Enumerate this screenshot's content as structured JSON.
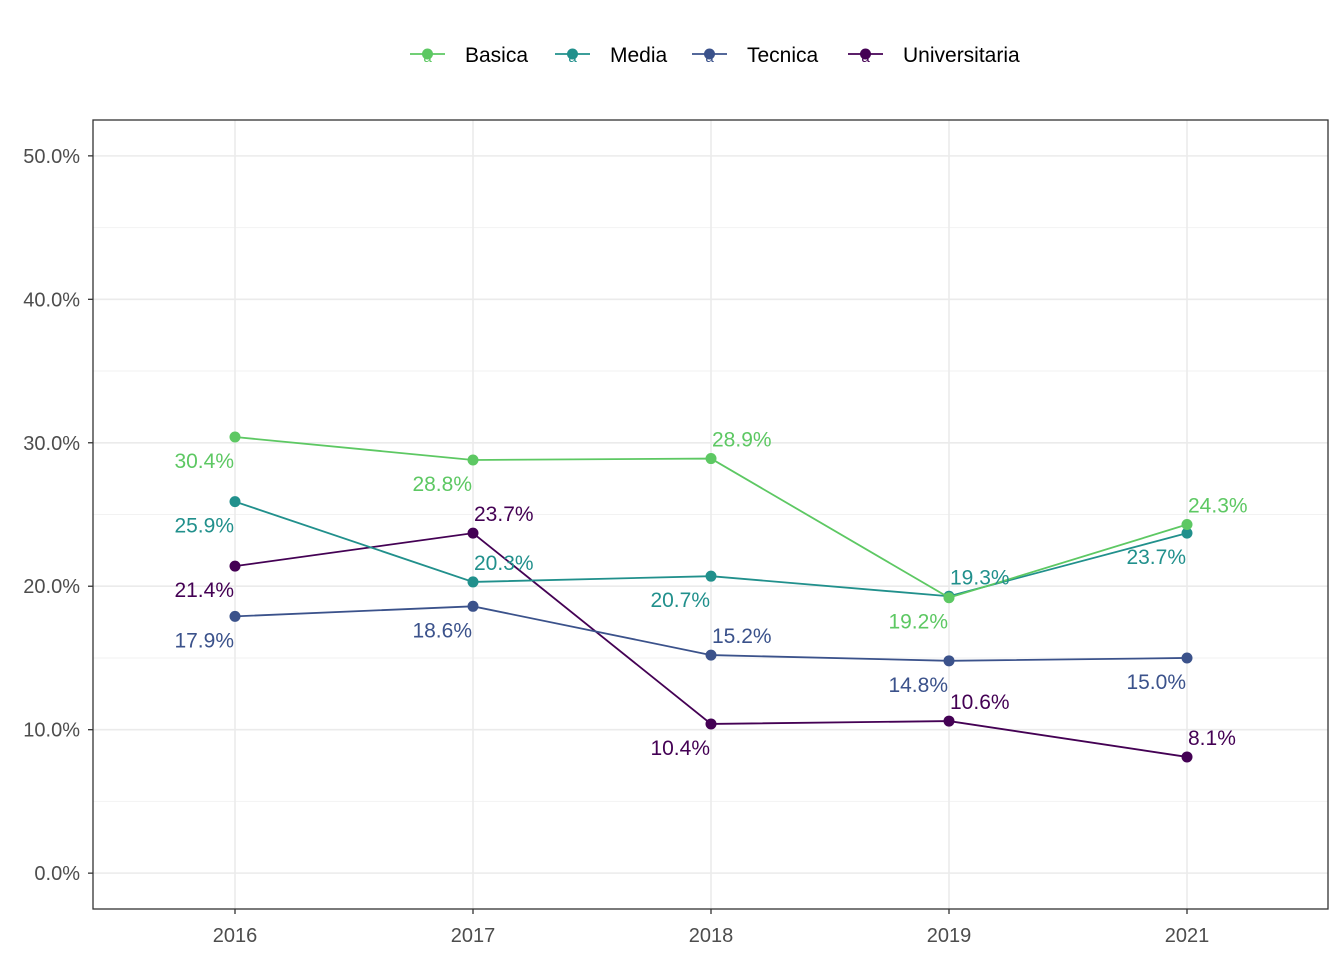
{
  "chart_data": {
    "type": "line",
    "title": "",
    "xlabel": "",
    "ylabel": "",
    "categories": [
      "2016",
      "2017",
      "2018",
      "2019",
      "2021"
    ],
    "ylim": [
      -0.025,
      0.525
    ],
    "yticks": [
      0.0,
      0.1,
      0.2,
      0.3,
      0.4,
      0.5
    ],
    "ytick_labels": [
      "0.0%",
      "10.0%",
      "20.0%",
      "30.0%",
      "40.0%",
      "50.0%"
    ],
    "grid": true,
    "legend": {
      "position": "top",
      "glyph": "a"
    },
    "series": [
      {
        "name": "Basica",
        "color": "#5DC863",
        "values": [
          0.304,
          0.288,
          0.289,
          0.192,
          0.243
        ],
        "labels": [
          "30.4%",
          "28.8%",
          "28.9%",
          "19.2%",
          "24.3%"
        ],
        "label_pos": [
          "below",
          "below",
          "above",
          "below",
          "above"
        ]
      },
      {
        "name": "Media",
        "color": "#21908C",
        "values": [
          0.259,
          0.203,
          0.207,
          0.193,
          0.237
        ],
        "labels": [
          "25.9%",
          "20.3%",
          "20.7%",
          "19.3%",
          "23.7%"
        ],
        "label_pos": [
          "below",
          "above",
          "below",
          "above",
          "below"
        ]
      },
      {
        "name": "Tecnica",
        "color": "#3B528B",
        "values": [
          0.179,
          0.186,
          0.152,
          0.148,
          0.15
        ],
        "labels": [
          "17.9%",
          "18.6%",
          "15.2%",
          "14.8%",
          "15.0%"
        ],
        "label_pos": [
          "below",
          "below",
          "above",
          "below",
          "below"
        ]
      },
      {
        "name": "Universitaria",
        "color": "#440154",
        "values": [
          0.214,
          0.237,
          0.104,
          0.106,
          0.081
        ],
        "labels": [
          "21.4%",
          "23.7%",
          "10.4%",
          "10.6%",
          "8.1%"
        ],
        "label_pos": [
          "below",
          "above",
          "below",
          "above",
          "above"
        ]
      }
    ]
  }
}
